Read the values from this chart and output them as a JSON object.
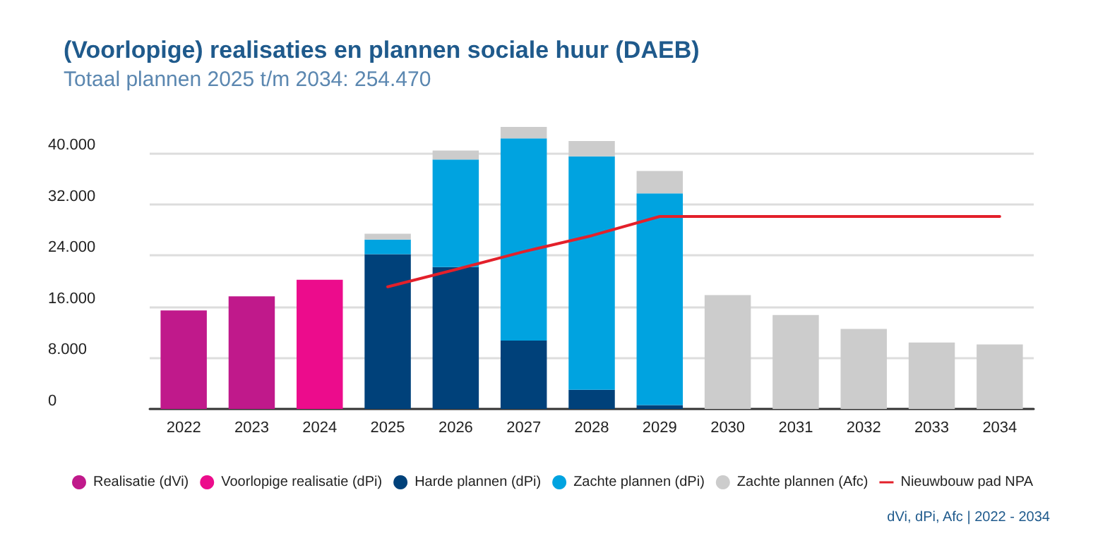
{
  "chart_data": {
    "type": "bar",
    "title": "(Voorlopige) realisaties en plannen sociale huur (DAEB)",
    "subtitle": "Totaal plannen 2025 t/m 2034: 254.470",
    "categories": [
      "2022",
      "2023",
      "2024",
      "2025",
      "2026",
      "2027",
      "2028",
      "2029",
      "2030",
      "2031",
      "2032",
      "2033",
      "2034"
    ],
    "series": [
      {
        "name": "Realisatie (dVi)",
        "color": "#c0198b",
        "values": [
          15400,
          17600,
          null,
          null,
          null,
          null,
          null,
          null,
          null,
          null,
          null,
          null,
          null
        ]
      },
      {
        "name": "Voorlopige realisatie (dPi)",
        "color": "#ec0c8c",
        "values": [
          null,
          null,
          20200,
          null,
          null,
          null,
          null,
          null,
          null,
          null,
          null,
          null,
          null
        ]
      },
      {
        "name": "Harde plannen (dPi)",
        "color": "#00417a",
        "values": [
          null,
          null,
          null,
          24200,
          22200,
          10700,
          3000,
          600,
          null,
          null,
          null,
          null,
          null
        ]
      },
      {
        "name": "Zachte plannen (dPi)",
        "color": "#00a3e0",
        "values": [
          null,
          null,
          null,
          2300,
          16800,
          31600,
          36500,
          33100,
          null,
          null,
          null,
          null,
          null
        ]
      },
      {
        "name": "Zachte plannen (Afc)",
        "color": "#cccccc",
        "values": [
          null,
          null,
          null,
          900,
          1400,
          1800,
          2400,
          3500,
          17800,
          14700,
          12500,
          10400,
          10100
        ]
      },
      {
        "name": "Nieuwbouw pad NPA",
        "type": "line",
        "color": "#e3202a",
        "values": [
          null,
          null,
          null,
          19100,
          21800,
          24600,
          27100,
          30100,
          30100,
          30100,
          30100,
          30100,
          30100
        ]
      }
    ],
    "stacked": true,
    "ylim": [
      0,
      44100
    ],
    "yticks": [
      {
        "value": 0,
        "label": "0"
      },
      {
        "value": 8000,
        "label": "8.000"
      },
      {
        "value": 16000,
        "label": "16.000"
      },
      {
        "value": 24000,
        "label": "24.000"
      },
      {
        "value": 32000,
        "label": "32.000"
      },
      {
        "value": 40000,
        "label": "40.000"
      }
    ],
    "grid": "y",
    "legend": "bottom",
    "marker": "none",
    "line_style": "solid",
    "annotations": [
      "dVi, dPi, Afc | 2022 - 2034"
    ]
  }
}
